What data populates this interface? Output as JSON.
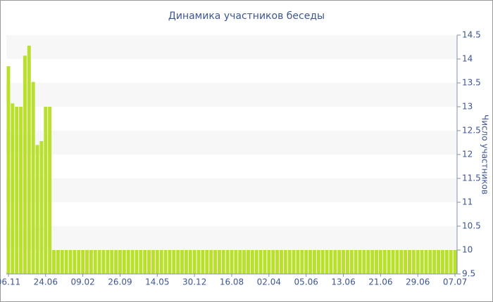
{
  "chart_data": {
    "type": "bar",
    "title": "Динамика участников беседы",
    "y_label": "Число участников",
    "categories": [
      "06.11",
      null,
      null,
      null,
      null,
      null,
      null,
      null,
      null,
      "24.06",
      null,
      null,
      null,
      null,
      null,
      null,
      null,
      null,
      "09.02",
      null,
      null,
      null,
      null,
      null,
      null,
      null,
      null,
      "26.09",
      null,
      null,
      null,
      null,
      null,
      null,
      null,
      null,
      "14.05",
      null,
      null,
      null,
      null,
      null,
      null,
      null,
      null,
      "30.12",
      null,
      null,
      null,
      null,
      null,
      null,
      null,
      null,
      "16.08",
      null,
      null,
      null,
      null,
      null,
      null,
      null,
      null,
      "02.04",
      null,
      null,
      null,
      null,
      null,
      null,
      null,
      null,
      "05.06",
      null,
      null,
      null,
      null,
      null,
      null,
      null,
      null,
      "13.06",
      null,
      null,
      null,
      null,
      null,
      null,
      null,
      null,
      "21.06",
      null,
      null,
      null,
      null,
      null,
      null,
      null,
      null,
      "29.06",
      null,
      null,
      null,
      null,
      null,
      null,
      null,
      null,
      "07.07"
    ],
    "values": [
      13.85,
      13.07,
      13.0,
      13.0,
      14.07,
      14.28,
      13.52,
      12.2,
      12.28,
      13.0,
      13.0,
      10,
      10,
      10,
      10,
      10,
      10,
      10,
      10,
      10,
      10,
      10,
      10,
      10,
      10,
      10,
      10,
      10,
      10,
      10,
      10,
      10,
      10,
      10,
      10,
      10,
      10,
      10,
      10,
      10,
      10,
      10,
      10,
      10,
      10,
      10,
      10,
      10,
      10,
      10,
      10,
      10,
      10,
      10,
      10,
      10,
      10,
      10,
      10,
      10,
      10,
      10,
      10,
      10,
      10,
      10,
      10,
      10,
      10,
      10,
      10,
      10,
      10,
      10,
      10,
      10,
      10,
      10,
      10,
      10,
      10,
      10,
      10,
      10,
      10,
      10,
      10,
      10,
      10,
      10,
      10,
      10,
      10,
      10,
      10,
      10,
      10,
      10,
      10,
      10,
      10,
      10,
      10,
      10,
      10,
      10,
      10,
      10,
      10
    ],
    "color": "#b8e02c",
    "ylim": [
      9.5,
      14.5
    ],
    "yticks": [
      9.5,
      10,
      10.5,
      11,
      11.5,
      12,
      12.5,
      13,
      13.5,
      14,
      14.5
    ],
    "y_axis_side": "right",
    "grid": "bands"
  }
}
